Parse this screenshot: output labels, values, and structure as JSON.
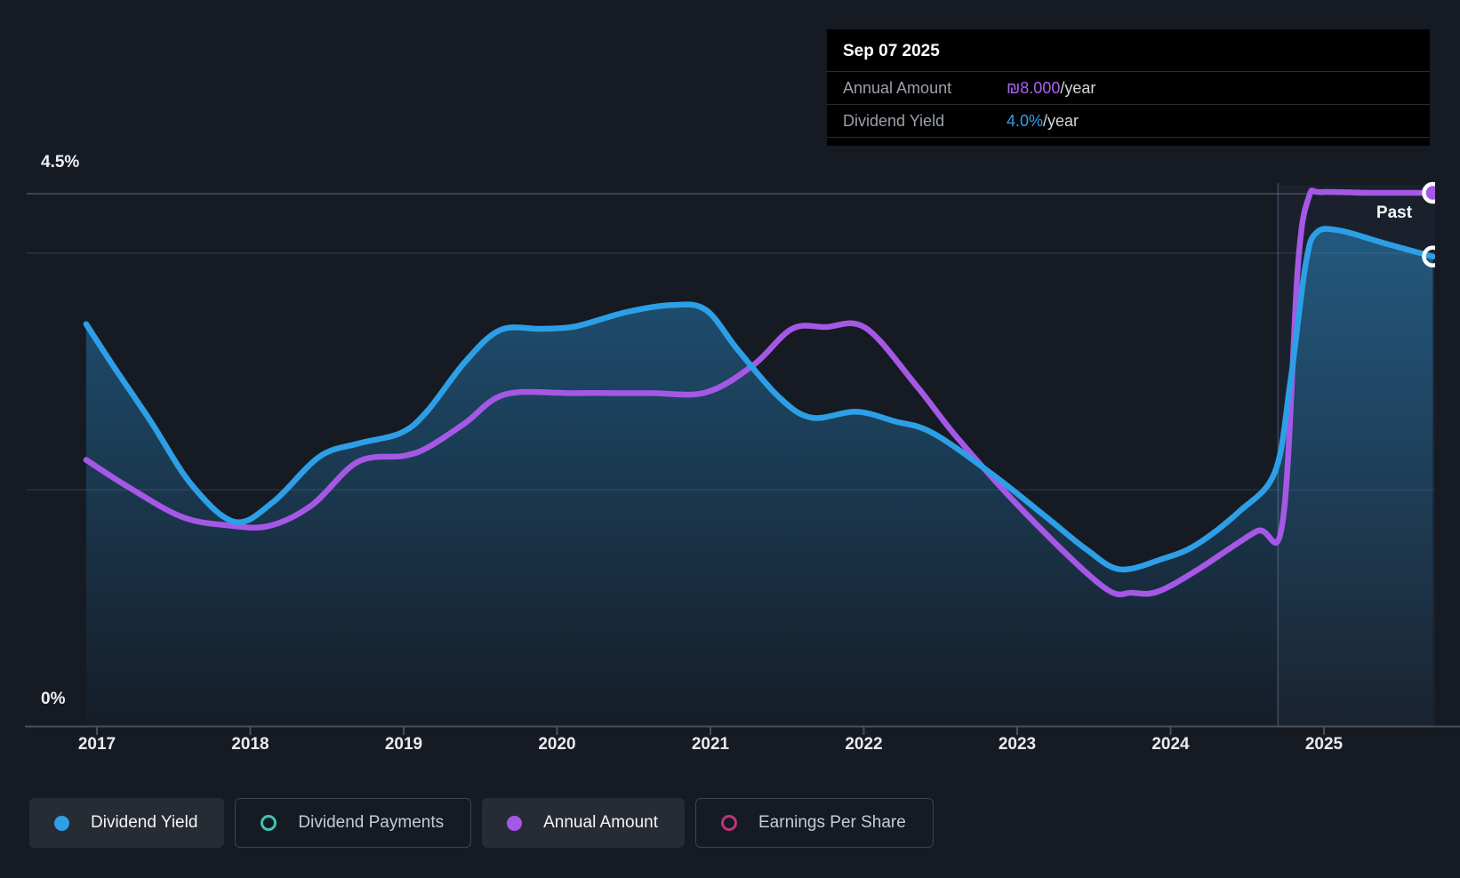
{
  "annotations": {
    "past_label": "Past"
  },
  "tooltip": {
    "date": "Sep 07 2025",
    "rows": [
      {
        "label": "Annual Amount",
        "value": "₪8.000",
        "suffix": "/year",
        "color": "#a962ee"
      },
      {
        "label": "Dividend Yield",
        "value": "4.0%",
        "suffix": "/year",
        "color": "#2d9ff0"
      }
    ]
  },
  "legend": [
    {
      "label": "Dividend Yield",
      "marker": "filled",
      "color": "#2d9fe6",
      "active": true
    },
    {
      "label": "Dividend Payments",
      "marker": "outline",
      "color": "#3fc4b1",
      "active": false
    },
    {
      "label": "Annual Amount",
      "marker": "filled",
      "color": "#a558e6",
      "active": true
    },
    {
      "label": "Earnings Per Share",
      "marker": "outline",
      "color": "#bf3476",
      "active": false
    }
  ],
  "colors": {
    "background": "#151a23",
    "blue_series": "#2d9fe6",
    "purple_series": "#a558e6",
    "grid_bright": "#3e434b",
    "grid_mid": "#30353d",
    "grid_dim": "#2b3038",
    "axis": "#494f57",
    "tooltip_bg": "#000000"
  },
  "chart_data": {
    "type": "line",
    "title": "Dividend history (yield and annual amount)",
    "x_tick_labels": [
      "2017",
      "2018",
      "2019",
      "2020",
      "2021",
      "2022",
      "2023",
      "2024",
      "2025"
    ],
    "y_axis": {
      "top_label": "4.5%",
      "bottom_label": "0%",
      "unit": "%",
      "min": 0,
      "max": 4.5,
      "gridlines_pct": [
        4.5,
        4.0,
        2.0
      ],
      "grid_on": true
    },
    "past_divider_year": 2024.7,
    "legend_position": "bottom",
    "series": [
      {
        "name": "Dividend Yield",
        "unit": "%",
        "color": "#2d9fe6",
        "style": "line_area",
        "end_marker": "hollow",
        "end_value_label": "4.0%/year",
        "points": [
          [
            2016.93,
            3.4
          ],
          [
            2017.1,
            3.06
          ],
          [
            2017.35,
            2.58
          ],
          [
            2017.62,
            2.04
          ],
          [
            2017.9,
            1.73
          ],
          [
            2018.15,
            1.9
          ],
          [
            2018.45,
            2.28
          ],
          [
            2018.7,
            2.39
          ],
          [
            2018.98,
            2.48
          ],
          [
            2019.15,
            2.66
          ],
          [
            2019.4,
            3.08
          ],
          [
            2019.63,
            3.35
          ],
          [
            2019.9,
            3.36
          ],
          [
            2020.12,
            3.38
          ],
          [
            2020.45,
            3.5
          ],
          [
            2020.75,
            3.56
          ],
          [
            2020.97,
            3.52
          ],
          [
            2021.18,
            3.18
          ],
          [
            2021.45,
            2.78
          ],
          [
            2021.66,
            2.61
          ],
          [
            2021.95,
            2.66
          ],
          [
            2022.2,
            2.58
          ],
          [
            2022.45,
            2.48
          ],
          [
            2022.85,
            2.12
          ],
          [
            2023.2,
            1.76
          ],
          [
            2023.45,
            1.5
          ],
          [
            2023.67,
            1.33
          ],
          [
            2023.95,
            1.42
          ],
          [
            2024.17,
            1.54
          ],
          [
            2024.45,
            1.82
          ],
          [
            2024.68,
            2.15
          ],
          [
            2024.78,
            2.9
          ],
          [
            2024.88,
            3.9
          ],
          [
            2024.95,
            4.17
          ],
          [
            2025.1,
            4.19
          ],
          [
            2025.4,
            4.08
          ],
          [
            2025.71,
            3.97
          ]
        ]
      },
      {
        "name": "Annual Amount",
        "unit": "ILS/year",
        "color": "#a558e6",
        "style": "line",
        "end_marker": "filled",
        "end_value_label": "₪8.000/year",
        "scale_note": "amount 8.0 plots at same height as 4.5% gridline area top",
        "points": [
          [
            2016.93,
            4.0
          ],
          [
            2017.2,
            3.6
          ],
          [
            2017.55,
            3.15
          ],
          [
            2017.85,
            3.02
          ],
          [
            2018.12,
            3.01
          ],
          [
            2018.4,
            3.32
          ],
          [
            2018.7,
            3.97
          ],
          [
            2019.0,
            4.06
          ],
          [
            2019.16,
            4.19
          ],
          [
            2019.4,
            4.55
          ],
          [
            2019.66,
            4.98
          ],
          [
            2020.1,
            5.0
          ],
          [
            2020.6,
            5.0
          ],
          [
            2020.97,
            5.01
          ],
          [
            2021.28,
            5.42
          ],
          [
            2021.53,
            5.96
          ],
          [
            2021.75,
            5.99
          ],
          [
            2022.01,
            5.98
          ],
          [
            2022.34,
            5.12
          ],
          [
            2022.61,
            4.33
          ],
          [
            2023.05,
            3.21
          ],
          [
            2023.56,
            2.1
          ],
          [
            2023.75,
            2.01
          ],
          [
            2023.92,
            2.03
          ],
          [
            2024.18,
            2.36
          ],
          [
            2024.56,
            2.93
          ],
          [
            2024.73,
            3.06
          ],
          [
            2024.83,
            6.9
          ],
          [
            2024.9,
            7.93
          ],
          [
            2024.98,
            8.01
          ],
          [
            2025.3,
            8.0
          ],
          [
            2025.71,
            8.0
          ]
        ]
      }
    ]
  }
}
